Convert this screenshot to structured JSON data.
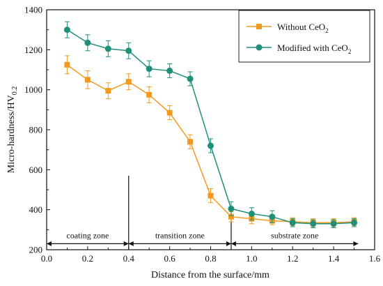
{
  "chart_data": {
    "type": "line",
    "title": "",
    "xlabel": "Distance from the surface/mm",
    "ylabel": "Micro-hardness/HV",
    "ylabel_subscript": "0.2",
    "xlim": [
      0.0,
      1.6
    ],
    "ylim": [
      200,
      1400
    ],
    "x_ticks": [
      "0.0",
      "0.2",
      "0.4",
      "0.6",
      "0.8",
      "1.0",
      "1.2",
      "1.4",
      "1.6"
    ],
    "y_ticks": [
      "200",
      "400",
      "600",
      "800",
      "1000",
      "1200",
      "1400"
    ],
    "grid": false,
    "legend_position": "top-right",
    "series": [
      {
        "name": "Without CeO",
        "name_subscript": "2",
        "color": "#F39A1E",
        "marker": "square",
        "x": [
          0.1,
          0.2,
          0.3,
          0.4,
          0.5,
          0.6,
          0.7,
          0.8,
          0.9,
          1.0,
          1.1,
          1.2,
          1.3,
          1.4,
          1.5
        ],
        "y": [
          1125,
          1050,
          995,
          1040,
          975,
          885,
          740,
          470,
          365,
          355,
          345,
          340,
          335,
          335,
          340
        ],
        "err": [
          45,
          45,
          40,
          40,
          40,
          35,
          35,
          35,
          25,
          25,
          20,
          20,
          20,
          20,
          20
        ]
      },
      {
        "name": "Modified with CeO",
        "name_subscript": "2",
        "color": "#1F8F7A",
        "marker": "circle",
        "x": [
          0.1,
          0.2,
          0.3,
          0.4,
          0.5,
          0.6,
          0.7,
          0.8,
          0.9,
          1.0,
          1.1,
          1.2,
          1.3,
          1.4,
          1.5
        ],
        "y": [
          1300,
          1235,
          1205,
          1195,
          1105,
          1095,
          1055,
          720,
          405,
          380,
          365,
          335,
          330,
          330,
          335
        ],
        "err": [
          40,
          40,
          40,
          40,
          40,
          35,
          35,
          35,
          35,
          30,
          30,
          20,
          20,
          20,
          20
        ]
      }
    ],
    "zones": [
      {
        "label": "coating zone",
        "from": 0.0,
        "to": 0.4
      },
      {
        "label": "transition zone",
        "from": 0.4,
        "to": 0.9
      },
      {
        "label": "substrate zone",
        "from": 0.9,
        "to": 1.52
      }
    ],
    "zone_level": 230,
    "boundary_lines": [
      {
        "x": 0.4,
        "y_top": 570
      },
      {
        "x": 0.9,
        "y_top": 405
      }
    ]
  }
}
